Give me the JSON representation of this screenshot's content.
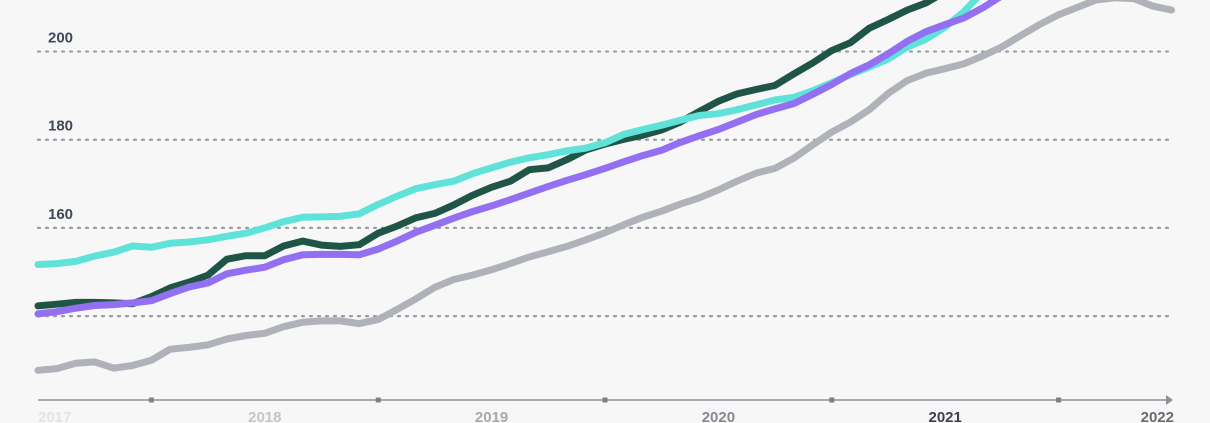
{
  "chart_data": {
    "type": "line",
    "x_start": 2017.0,
    "x_step": 0.0833,
    "x_range": [
      2017.0,
      2022.0
    ],
    "ylim": [
      128,
      216
    ],
    "grid": "horizontal-dotted",
    "y_ticks": [
      {
        "value": 140,
        "label": ""
      },
      {
        "value": 160,
        "label": "160"
      },
      {
        "value": 180,
        "label": "180"
      },
      {
        "value": 200,
        "label": "200"
      }
    ],
    "x_ticks": [
      {
        "value": 2017,
        "label": "2017",
        "color": "#e4e4e6"
      },
      {
        "value": 2018,
        "label": "2018",
        "color": "#c3c6cb"
      },
      {
        "value": 2019,
        "label": "2019",
        "color": "#a5a9af"
      },
      {
        "value": 2020,
        "label": "2020",
        "color": "#858990"
      },
      {
        "value": 2021,
        "label": "2021",
        "color": "#3b424b"
      },
      {
        "value": 2022,
        "label": "2022",
        "color": "#666b72"
      }
    ],
    "x_minor_ticks": [
      2017.5,
      2018.5,
      2019.5,
      2020.5,
      2021.5
    ],
    "series": [
      {
        "color": "#1f5547",
        "values": [
          142.3,
          142.7,
          143.1,
          143.1,
          143.0,
          142.8,
          144.4,
          146.4,
          147.7,
          149.3,
          152.9,
          153.7,
          153.7,
          155.9,
          157.0,
          156.1,
          155.8,
          156.2,
          158.8,
          160.4,
          162.3,
          163.3,
          165.2,
          167.4,
          169.2,
          170.6,
          173.2,
          173.6,
          175.5,
          177.7,
          179.0,
          180.1,
          181.0,
          182.2,
          184.0,
          186.4,
          188.7,
          190.4,
          191.4,
          192.3,
          194.9,
          197.4,
          200.2,
          202.0,
          205.3,
          207.3,
          209.4,
          211.0,
          213.5,
          215.5
        ]
      },
      {
        "color": "#5fe3d9",
        "values": [
          151.7,
          151.9,
          152.4,
          153.6,
          154.5,
          155.9,
          155.6,
          156.5,
          156.8,
          157.3,
          158.1,
          158.8,
          160.0,
          161.4,
          162.4,
          162.5,
          162.6,
          163.2,
          165.3,
          167.2,
          168.9,
          169.8,
          170.6,
          172.3,
          173.6,
          174.9,
          175.9,
          176.6,
          177.5,
          178.1,
          179.3,
          181.2,
          182.3,
          183.3,
          184.4,
          185.5,
          185.9,
          186.8,
          187.9,
          189.0,
          189.6,
          191.1,
          192.9,
          194.8,
          196.5,
          198.3,
          201.0,
          202.8,
          205.5,
          209.0,
          213.5,
          217.0
        ]
      },
      {
        "color": "#9370f2",
        "values": [
          140.5,
          141.0,
          141.8,
          142.4,
          142.6,
          143.0,
          143.5,
          145.1,
          146.6,
          147.5,
          149.6,
          150.4,
          151.1,
          152.8,
          153.9,
          154.0,
          154.0,
          153.9,
          155.2,
          157.0,
          159.0,
          160.6,
          162.2,
          163.7,
          165.0,
          166.4,
          167.9,
          169.4,
          170.8,
          172.1,
          173.5,
          175.0,
          176.4,
          177.6,
          179.4,
          180.9,
          182.3,
          184.0,
          185.7,
          187.0,
          188.2,
          190.3,
          192.5,
          195.0,
          197.0,
          199.5,
          202.3,
          204.5,
          206.1,
          207.6,
          209.9,
          212.6,
          215.8
        ]
      },
      {
        "color": "#afb2b8",
        "values": [
          127.7,
          128.1,
          129.3,
          129.6,
          128.2,
          128.8,
          130.0,
          132.5,
          132.9,
          133.5,
          134.8,
          135.6,
          136.1,
          137.6,
          138.6,
          138.9,
          138.9,
          138.3,
          139.2,
          141.5,
          143.9,
          146.5,
          148.3,
          149.3,
          150.5,
          151.9,
          153.4,
          154.6,
          155.8,
          157.3,
          158.9,
          160.7,
          162.4,
          163.8,
          165.4,
          166.8,
          168.6,
          170.6,
          172.4,
          173.5,
          175.8,
          178.8,
          181.7,
          184.0,
          186.8,
          190.5,
          193.4,
          195.1,
          196.1,
          197.2,
          199.0,
          201.0,
          203.6,
          206.1,
          208.3,
          210.0,
          211.7,
          212.2,
          212.0,
          210.3,
          209.4
        ]
      }
    ]
  }
}
